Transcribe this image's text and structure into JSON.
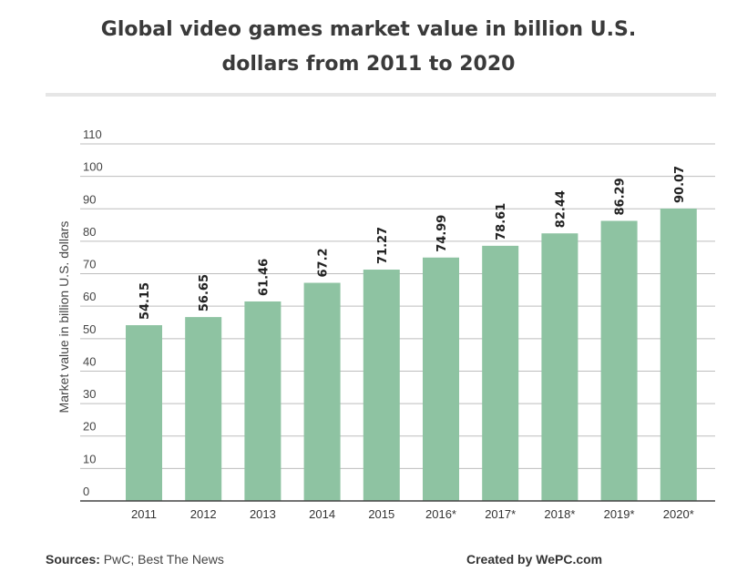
{
  "title_line1": "Global video games market value in billion U.S.",
  "title_line2": "dollars from 2011 to 2020",
  "footer": {
    "sources_label": "Sources:",
    "sources_text": " PwC; Best The News",
    "created_by": "Created by WePC.com"
  },
  "colors": {
    "bar": "#8ec3a2",
    "grid": "#bdbdbd",
    "axis": "#444444"
  },
  "chart_data": {
    "type": "bar",
    "title": "Global video games market value in billion U.S. dollars from 2011 to 2020",
    "xlabel": "",
    "ylabel": "Market value in billion U.S. dollars",
    "categories": [
      "2011",
      "2012",
      "2013",
      "2014",
      "2015",
      "2016*",
      "2017*",
      "2018*",
      "2019*",
      "2020*"
    ],
    "values": [
      54.15,
      56.65,
      61.46,
      67.2,
      71.27,
      74.99,
      78.61,
      82.44,
      86.29,
      90.07
    ],
    "value_labels": [
      "54.15",
      "56.65",
      "61.46",
      "67.2",
      "71.27",
      "74.99",
      "78.61",
      "82.44",
      "86.29",
      "90.07"
    ],
    "yticks": [
      "0",
      "10",
      "20",
      "30",
      "40",
      "50",
      "60",
      "70",
      "80",
      "90",
      "100",
      "110"
    ],
    "ylim": [
      0,
      110
    ],
    "grid": true
  }
}
